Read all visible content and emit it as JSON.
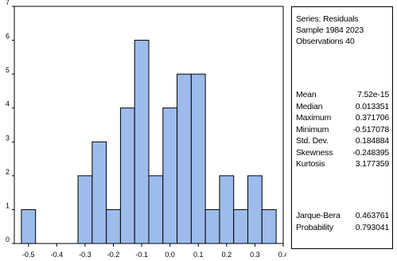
{
  "chart_data": {
    "type": "bar",
    "title": "",
    "xlabel": "",
    "ylabel": "",
    "bins": [
      {
        "x": -0.5,
        "count": 1
      },
      {
        "x": -0.45,
        "count": 0
      },
      {
        "x": -0.4,
        "count": 0
      },
      {
        "x": -0.35,
        "count": 0
      },
      {
        "x": -0.3,
        "count": 2
      },
      {
        "x": -0.25,
        "count": 3
      },
      {
        "x": -0.2,
        "count": 1
      },
      {
        "x": -0.15,
        "count": 4
      },
      {
        "x": -0.1,
        "count": 6
      },
      {
        "x": -0.05,
        "count": 2
      },
      {
        "x": 0.0,
        "count": 4
      },
      {
        "x": 0.05,
        "count": 5
      },
      {
        "x": 0.1,
        "count": 5
      },
      {
        "x": 0.15,
        "count": 1
      },
      {
        "x": 0.2,
        "count": 2
      },
      {
        "x": 0.25,
        "count": 1
      },
      {
        "x": 0.3,
        "count": 2
      },
      {
        "x": 0.35,
        "count": 1
      }
    ],
    "bin_width": 0.05,
    "xlim": [
      -0.55,
      0.4
    ],
    "ylim": [
      0,
      7
    ],
    "x_ticks": [
      "-0.5",
      "-0.4",
      "-0.3",
      "-0.2",
      "-0.1",
      "0.0",
      "0.1",
      "0.2",
      "0.3",
      "0.4"
    ],
    "x_tick_values": [
      -0.5,
      -0.4,
      -0.3,
      -0.2,
      -0.1,
      0.0,
      0.1,
      0.2,
      0.3,
      0.4
    ],
    "y_ticks": [
      "0",
      "1",
      "2",
      "3",
      "4",
      "5",
      "6",
      "7"
    ],
    "y_tick_values": [
      0,
      1,
      2,
      3,
      4,
      5,
      6,
      7
    ],
    "grid": false,
    "bar_color": "#9DBBEB",
    "bar_edge_color": "#000000"
  },
  "stats": {
    "series": "Series: Residuals",
    "sample": "Sample 1984 2023",
    "observations": "Observations 40",
    "descriptive": [
      {
        "label": "Mean",
        "value": "7.52e-15"
      },
      {
        "label": "Median",
        "value": "0.013351"
      },
      {
        "label": "Maximum",
        "value": "0.371706"
      },
      {
        "label": "Minimum",
        "value": "-0.517078"
      },
      {
        "label": "Std. Dev.",
        "value": "0.184884"
      },
      {
        "label": "Skewness",
        "value": "-0.248395"
      },
      {
        "label": "Kurtosis",
        "value": "3.177359"
      }
    ],
    "tests": [
      {
        "label": "Jarque-Bera",
        "value": "0.463761"
      },
      {
        "label": "Probability",
        "value": "0.793041"
      }
    ]
  }
}
